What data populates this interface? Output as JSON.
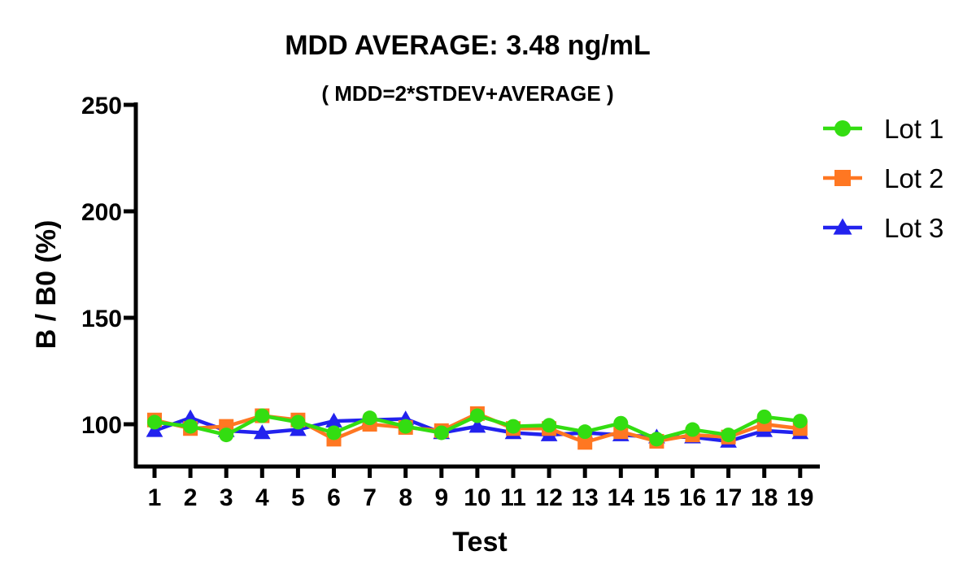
{
  "chart_data": {
    "type": "line",
    "title": "MDD AVERAGE:  3.48 ng/mL",
    "subtitle": "( MDD=2*STDEV+AVERAGE )",
    "xlabel": "Test",
    "ylabel": "B / B0 (%)",
    "x": [
      "1",
      "2",
      "3",
      "4",
      "5",
      "6",
      "7",
      "8",
      "9",
      "10",
      "11",
      "12",
      "13",
      "14",
      "15",
      "16",
      "17",
      "18",
      "19"
    ],
    "yticks": [
      100,
      150,
      200,
      250
    ],
    "ylim": [
      80,
      250
    ],
    "legend_position": "top-right",
    "grid": false,
    "series": [
      {
        "name": "Lot 1",
        "marker": "circle",
        "color": "#33dd11",
        "values": [
          101,
          99,
          95,
          104,
          101,
          96,
          103,
          99,
          96,
          104,
          99,
          99.5,
          96.5,
          100.5,
          93,
          97.5,
          95,
          103.5,
          101.5
        ]
      },
      {
        "name": "Lot 2",
        "marker": "square",
        "color": "#ff7722",
        "values": [
          102,
          98,
          99,
          104,
          102,
          93,
          100,
          98.5,
          97,
          105,
          98,
          98,
          91.5,
          96.5,
          92,
          95,
          94,
          100,
          98
        ]
      },
      {
        "name": "Lot 3",
        "marker": "triangle",
        "color": "#2222ee",
        "values": [
          97,
          103,
          97,
          96,
          97.5,
          101.5,
          102,
          102.5,
          96,
          99,
          96,
          95,
          96,
          95,
          94,
          94,
          92,
          97,
          96
        ]
      }
    ]
  }
}
